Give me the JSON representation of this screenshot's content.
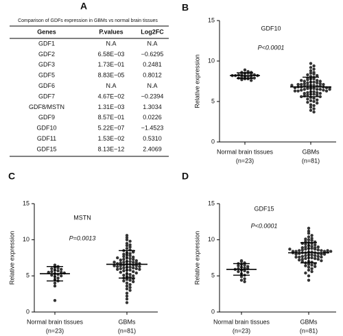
{
  "table": {
    "label": "A",
    "title": "Comparison of GDFs expression in GBMs vs normal brain tissues",
    "header": [
      "Genes",
      "P.values",
      "Log2FC"
    ],
    "rows": [
      [
        "GDF1",
        "N.A",
        "N.A"
      ],
      [
        "GDF2",
        "6.58E−03",
        "−0.6295"
      ],
      [
        "GDF3",
        "1.73E−01",
        "0.2481"
      ],
      [
        "GDF5",
        "8.83E−05",
        "0.8012"
      ],
      [
        "GDF6",
        "N.A",
        "N.A"
      ],
      [
        "GDF7",
        "4.67E−02",
        "−0.2394"
      ],
      [
        "GDF8/MSTN",
        "1.31E−03",
        "1.3034"
      ],
      [
        "GDF9",
        "8.57E−01",
        "0.0226"
      ],
      [
        "GDF10",
        "5.22E−07",
        "−1.4523"
      ],
      [
        "GDF11",
        "1.53E−02",
        "0.5310"
      ],
      [
        "GDF15",
        "8.13E−12",
        "2.4069"
      ]
    ]
  },
  "chart_data": [
    {
      "type": "dot",
      "panel": "B",
      "title": "GDF10",
      "annotation": "P<0.0001",
      "y_label": "Relative expression",
      "categories": [
        "Normal brain tissues",
        "GBMs"
      ],
      "n_labels": [
        "(n=23)",
        "(n=81)"
      ],
      "ylim": [
        0,
        15
      ],
      "yticks": [
        0,
        5,
        10,
        15
      ],
      "color": "#333333",
      "groups": [
        {
          "mean": 8.2,
          "sd": 0.35,
          "values": [
            8.9,
            8.7,
            8.6,
            8.5,
            8.5,
            8.4,
            8.4,
            8.3,
            8.3,
            8.2,
            8.2,
            8.2,
            8.1,
            8.1,
            8.0,
            8.0,
            7.9,
            7.9,
            7.8,
            7.8,
            7.7,
            7.6,
            8.6
          ]
        },
        {
          "mean": 6.8,
          "sd": 1.2,
          "values": [
            9.7,
            9.4,
            9.2,
            9.0,
            8.8,
            8.6,
            8.5,
            8.4,
            8.3,
            8.1,
            8.0,
            7.9,
            7.8,
            7.8,
            7.7,
            7.6,
            7.5,
            7.5,
            7.4,
            7.4,
            7.3,
            7.3,
            7.2,
            7.2,
            7.1,
            7.1,
            7.1,
            7.0,
            7.0,
            7.0,
            6.9,
            6.9,
            6.9,
            6.8,
            6.8,
            6.8,
            6.7,
            6.7,
            6.7,
            6.6,
            6.6,
            6.6,
            6.5,
            6.5,
            6.5,
            6.4,
            6.4,
            6.3,
            6.3,
            6.3,
            6.2,
            6.2,
            6.1,
            6.1,
            6.0,
            6.0,
            5.9,
            5.9,
            5.8,
            5.8,
            5.7,
            5.6,
            5.6,
            5.5,
            5.4,
            5.3,
            5.2,
            5.1,
            5.0,
            4.9,
            4.8,
            4.6,
            4.5,
            4.3,
            4.1,
            3.9,
            3.7,
            7.6,
            7.0,
            6.5,
            8.2
          ]
        }
      ]
    },
    {
      "type": "dot",
      "panel": "C",
      "title": "MSTN",
      "annotation": "P=0.0013",
      "y_label": "Relative expression",
      "categories": [
        "Normal brain tissues",
        "GBMs"
      ],
      "n_labels": [
        "(n=23)",
        "(n=81)"
      ],
      "ylim": [
        0,
        15
      ],
      "yticks": [
        0,
        5,
        10,
        15
      ],
      "color": "#333333",
      "groups": [
        {
          "mean": 5.3,
          "sd": 1.0,
          "values": [
            6.5,
            6.3,
            6.2,
            6.1,
            6.0,
            5.9,
            5.8,
            5.7,
            5.6,
            5.5,
            5.5,
            5.4,
            5.3,
            5.2,
            5.1,
            5.0,
            4.9,
            4.7,
            4.5,
            4.3,
            4.0,
            3.6,
            1.6
          ]
        },
        {
          "mean": 6.6,
          "sd": 1.9,
          "values": [
            10.6,
            10.3,
            10.0,
            9.8,
            9.5,
            9.2,
            9.0,
            8.8,
            8.6,
            8.5,
            8.4,
            8.2,
            8.1,
            8.0,
            7.9,
            7.8,
            7.7,
            7.6,
            7.5,
            7.4,
            7.3,
            7.3,
            7.2,
            7.1,
            7.0,
            7.0,
            6.9,
            6.9,
            6.8,
            6.8,
            6.7,
            6.7,
            6.6,
            6.6,
            6.5,
            6.5,
            6.4,
            6.4,
            6.3,
            6.3,
            6.2,
            6.2,
            6.1,
            6.1,
            6.0,
            6.0,
            5.9,
            5.9,
            5.8,
            5.8,
            5.7,
            5.6,
            5.5,
            5.4,
            5.3,
            5.2,
            5.1,
            5.0,
            4.9,
            4.8,
            4.7,
            4.6,
            4.5,
            4.4,
            4.3,
            4.2,
            4.0,
            3.8,
            3.6,
            3.4,
            3.2,
            3.0,
            2.6,
            2.2,
            1.8,
            1.3,
            7.5,
            6.9,
            8.3,
            9.3,
            6.4
          ]
        }
      ]
    },
    {
      "type": "dot",
      "panel": "D",
      "title": "GDF15",
      "annotation": "P<0.0001",
      "y_label": "Relative expression",
      "categories": [
        "Normal brain tissues",
        "GBMs"
      ],
      "n_labels": [
        "(n=23)",
        "(n=81)"
      ],
      "ylim": [
        0,
        15
      ],
      "yticks": [
        0,
        5,
        10,
        15
      ],
      "color": "#333333",
      "groups": [
        {
          "mean": 5.9,
          "sd": 0.8,
          "values": [
            7.1,
            7.0,
            6.8,
            6.7,
            6.6,
            6.5,
            6.4,
            6.3,
            6.2,
            6.1,
            6.0,
            6.0,
            5.9,
            5.8,
            5.7,
            5.6,
            5.5,
            5.3,
            5.1,
            4.9,
            4.6,
            4.4,
            4.2
          ]
        },
        {
          "mean": 8.2,
          "sd": 1.4,
          "values": [
            11.6,
            11.2,
            10.9,
            10.6,
            10.4,
            10.2,
            10.0,
            9.9,
            9.8,
            9.7,
            9.6,
            9.5,
            9.4,
            9.3,
            9.2,
            9.1,
            9.0,
            8.9,
            8.9,
            8.8,
            8.8,
            8.7,
            8.7,
            8.6,
            8.6,
            8.5,
            8.5,
            8.4,
            8.4,
            8.4,
            8.3,
            8.3,
            8.2,
            8.2,
            8.2,
            8.1,
            8.1,
            8.0,
            8.0,
            7.9,
            7.9,
            7.8,
            7.8,
            7.7,
            7.7,
            7.6,
            7.6,
            7.5,
            7.5,
            7.4,
            7.4,
            7.3,
            7.3,
            7.2,
            7.1,
            7.0,
            6.9,
            6.8,
            6.7,
            6.6,
            6.5,
            6.4,
            6.3,
            6.2,
            6.0,
            5.8,
            5.6,
            5.4,
            5.0,
            4.4,
            8.5,
            8.0,
            9.0,
            7.6,
            8.2,
            8.7,
            9.5,
            7.0,
            8.4,
            10.1,
            8.3
          ]
        }
      ]
    }
  ]
}
